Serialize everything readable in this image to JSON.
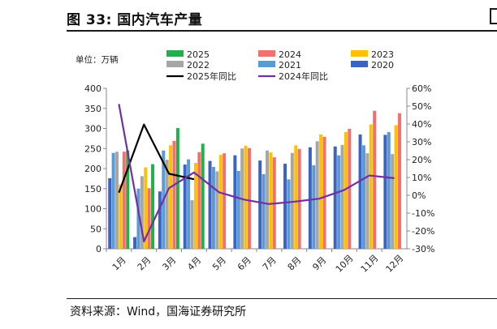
{
  "header": {
    "title": "图 33:  国内汽车产量",
    "right_fragment": ""
  },
  "footer": {
    "source": "资料来源：Wind，国海证券研究所"
  },
  "chart_data": {
    "type": "bar",
    "unit_label": "单位：万辆",
    "categories": [
      "1月",
      "2月",
      "3月",
      "4月",
      "5月",
      "6月",
      "7月",
      "8月",
      "9月",
      "10月",
      "11月",
      "12月"
    ],
    "ylim": [
      0,
      400
    ],
    "y_ticks": [
      0,
      50,
      100,
      150,
      200,
      250,
      300,
      350,
      400
    ],
    "y2lim": [
      -30,
      60
    ],
    "y2_ticks": [
      "-30%",
      "-20%",
      "-10%",
      "0%",
      "10%",
      "20%",
      "30%",
      "40%",
      "50%",
      "60%"
    ],
    "y2_tick_values": [
      -30,
      -20,
      -10,
      0,
      10,
      20,
      30,
      40,
      50,
      60
    ],
    "bar_series": [
      {
        "name": "2020",
        "color": "#3B63C4",
        "values": [
          176,
          29,
          143,
          210,
          219,
          233,
          220,
          212,
          253,
          255,
          285,
          284
        ]
      },
      {
        "name": "2021",
        "color": "#5B9BD5",
        "values": [
          239,
          150,
          245,
          223,
          204,
          194,
          186,
          173,
          208,
          233,
          258,
          291
        ]
      },
      {
        "name": "2022",
        "color": "#A6A6A6",
        "values": [
          242,
          181,
          222,
          121,
          193,
          250,
          245,
          239,
          268,
          259,
          238,
          236
        ]
      },
      {
        "name": "2023",
        "color": "#FFC000",
        "values": [
          160,
          203,
          258,
          214,
          234,
          257,
          240,
          258,
          285,
          291,
          310,
          308
        ]
      },
      {
        "name": "2024",
        "color": "#F4706F",
        "values": [
          242,
          151,
          269,
          241,
          238,
          251,
          228,
          249,
          279,
          299,
          344,
          338
        ]
      },
      {
        "name": "2025",
        "color": "#22B04B",
        "values": [
          245,
          211,
          301,
          262,
          null,
          null,
          null,
          null,
          null,
          null,
          null,
          null
        ]
      }
    ],
    "line_series": [
      {
        "name": "2025年同比",
        "color": "#000000",
        "values": [
          1.5,
          39.7,
          12.1,
          9.0,
          null,
          null,
          null,
          null,
          null,
          null,
          null,
          null
        ]
      },
      {
        "name": "2024年同比",
        "color": "#7030A0",
        "values": [
          51.2,
          -25.9,
          4.0,
          12.8,
          1.7,
          -2.4,
          -4.9,
          -3.6,
          -1.9,
          3.0,
          11.1,
          9.6
        ]
      }
    ],
    "legend_order": [
      "2025",
      "2024",
      "2023",
      "2022",
      "2021",
      "2020",
      "2025年同比",
      "2024年同比"
    ]
  }
}
